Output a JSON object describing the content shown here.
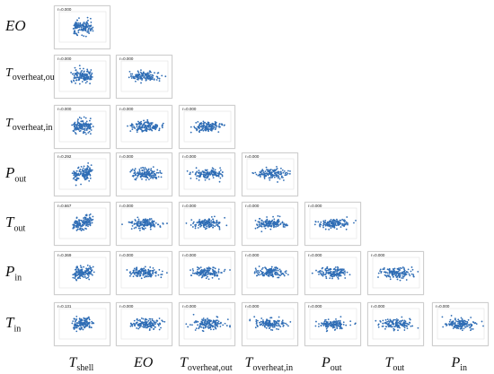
{
  "variables": [
    {
      "id": "Tshell",
      "base": "T",
      "sub": "shell"
    },
    {
      "id": "EO",
      "base": "EO",
      "sub": ""
    },
    {
      "id": "ToverheatOut",
      "base": "T",
      "sub": "overheat,out"
    },
    {
      "id": "ToverheatIn",
      "base": "T",
      "sub": "overheat,in"
    },
    {
      "id": "Pout",
      "base": "P",
      "sub": "out"
    },
    {
      "id": "Tout",
      "base": "T",
      "sub": "out"
    },
    {
      "id": "Pin",
      "base": "P",
      "sub": "in"
    },
    {
      "id": "Tin",
      "base": "T",
      "sub": "in"
    }
  ],
  "colors": {
    "points": "#2f6db5",
    "panel_border": "#cfcfcf"
  },
  "chart_data": {
    "type": "scatter",
    "layout": "lower-triangular scatter matrix",
    "columns": [
      "Tshell",
      "EO",
      "ToverheatOut",
      "ToverheatIn",
      "Pout",
      "Tout",
      "Pin"
    ],
    "rows": [
      "EO",
      "ToverheatOut",
      "ToverheatIn",
      "Pout",
      "Tout",
      "Pin",
      "Tin"
    ],
    "cells": [
      {
        "row": "EO",
        "col": "Tshell",
        "r": "r=0.000"
      },
      {
        "row": "ToverheatOut",
        "col": "Tshell",
        "r": "r=0.000"
      },
      {
        "row": "ToverheatOut",
        "col": "EO",
        "r": "r=0.000"
      },
      {
        "row": "ToverheatIn",
        "col": "Tshell",
        "r": "r=0.000"
      },
      {
        "row": "ToverheatIn",
        "col": "EO",
        "r": "r=0.000"
      },
      {
        "row": "ToverheatIn",
        "col": "ToverheatOut",
        "r": "r=0.000"
      },
      {
        "row": "Pout",
        "col": "Tshell",
        "r": "r=0.292"
      },
      {
        "row": "Pout",
        "col": "EO",
        "r": "r=0.000"
      },
      {
        "row": "Pout",
        "col": "ToverheatOut",
        "r": "r=0.000"
      },
      {
        "row": "Pout",
        "col": "ToverheatIn",
        "r": "r=0.000"
      },
      {
        "row": "Tout",
        "col": "Tshell",
        "r": "r=0.667"
      },
      {
        "row": "Tout",
        "col": "EO",
        "r": "r=0.000"
      },
      {
        "row": "Tout",
        "col": "ToverheatOut",
        "r": "r=0.000"
      },
      {
        "row": "Tout",
        "col": "ToverheatIn",
        "r": "r=0.000"
      },
      {
        "row": "Tout",
        "col": "Pout",
        "r": "r=0.000"
      },
      {
        "row": "Pin",
        "col": "Tshell",
        "r": "r=0.369"
      },
      {
        "row": "Pin",
        "col": "EO",
        "r": "r=0.000"
      },
      {
        "row": "Pin",
        "col": "ToverheatOut",
        "r": "r=0.000"
      },
      {
        "row": "Pin",
        "col": "ToverheatIn",
        "r": "r=0.000"
      },
      {
        "row": "Pin",
        "col": "Pout",
        "r": "r=0.000"
      },
      {
        "row": "Pin",
        "col": "Tout",
        "r": "r=0.000"
      },
      {
        "row": "Tin",
        "col": "Tshell",
        "r": "r=0.131"
      },
      {
        "row": "Tin",
        "col": "EO",
        "r": "r=0.000"
      },
      {
        "row": "Tin",
        "col": "ToverheatOut",
        "r": "r=0.000"
      },
      {
        "row": "Tin",
        "col": "ToverheatIn",
        "r": "r=0.000"
      },
      {
        "row": "Tin",
        "col": "Pout",
        "r": "r=0.000"
      },
      {
        "row": "Tin",
        "col": "Tout",
        "r": "r=0.000"
      },
      {
        "row": "Tin",
        "col": "Pin",
        "r": "r=0.000"
      }
    ]
  }
}
